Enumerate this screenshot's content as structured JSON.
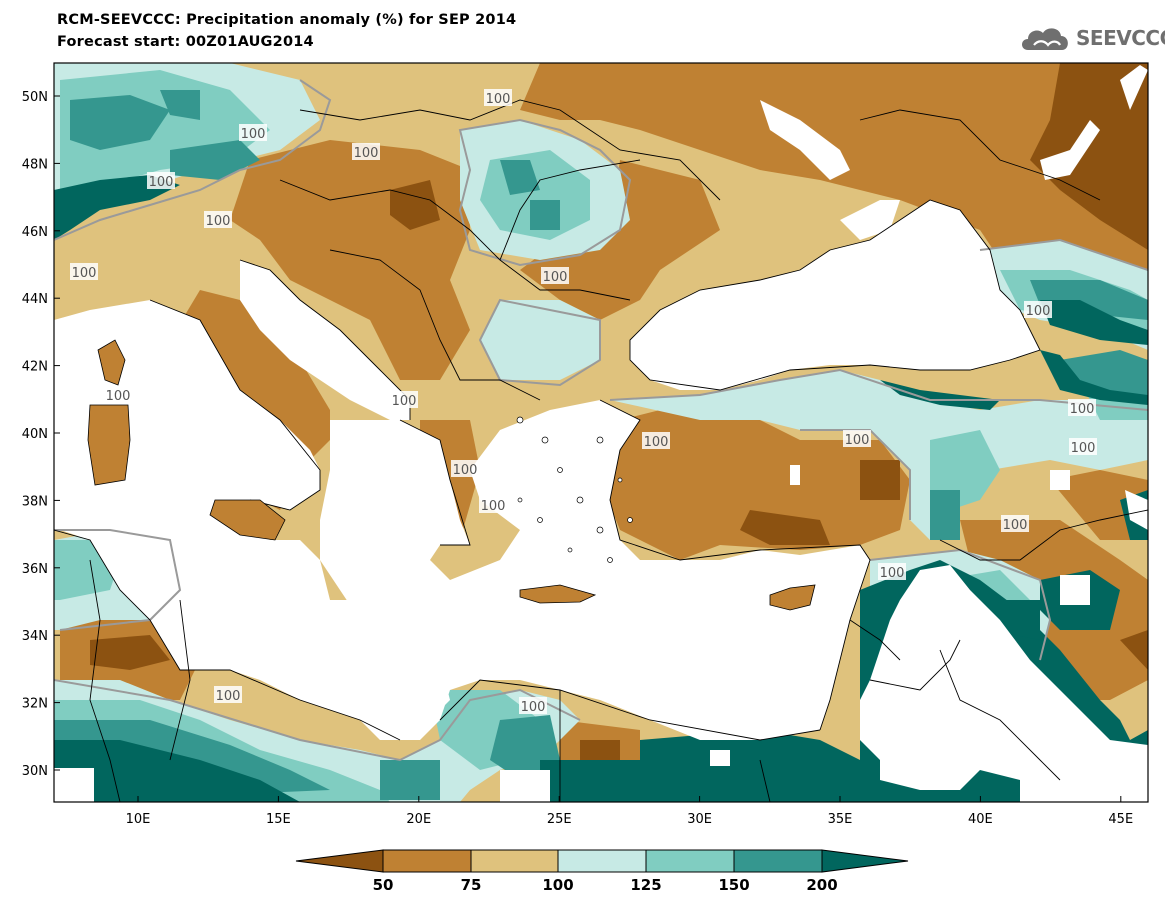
{
  "header": {
    "title": "RCM-SEEVCCC: Precipitation anomaly (%) for SEP 2014",
    "subtitle": "Forecast start: 00Z01AUG2014"
  },
  "logo": {
    "text": "SEEVCCC",
    "icon": "cloud-icon"
  },
  "map": {
    "lat_labels": [
      "50N",
      "48N",
      "46N",
      "44N",
      "42N",
      "40N",
      "38N",
      "36N",
      "34N",
      "32N",
      "30N"
    ],
    "lon_labels": [
      "10E",
      "15E",
      "20E",
      "25E",
      "30E",
      "35E",
      "40E",
      "45E"
    ],
    "contour_labels": [
      "100",
      "100",
      "100",
      "100",
      "100",
      "100",
      "100",
      "100",
      "100",
      "100",
      "100",
      "100",
      "100",
      "100",
      "100",
      "100",
      "100",
      "100",
      "100",
      "100"
    ]
  },
  "colorbar": {
    "ticks": [
      "50",
      "75",
      "100",
      "125",
      "150",
      "200"
    ],
    "colors": [
      "#8c5211",
      "#bf8133",
      "#dfc27d",
      "#c7eae5",
      "#80cdc1",
      "#35978f",
      "#01665e"
    ]
  },
  "colors": {
    "very_dry": "#8c5211",
    "dry": "#bf8133",
    "slightly_dry": "#dfc27d",
    "slightly_wet": "#c7eae5",
    "wet": "#80cdc1",
    "very_wet": "#35978f",
    "extreme_wet": "#01665e",
    "contour": "#9a9a9a"
  }
}
